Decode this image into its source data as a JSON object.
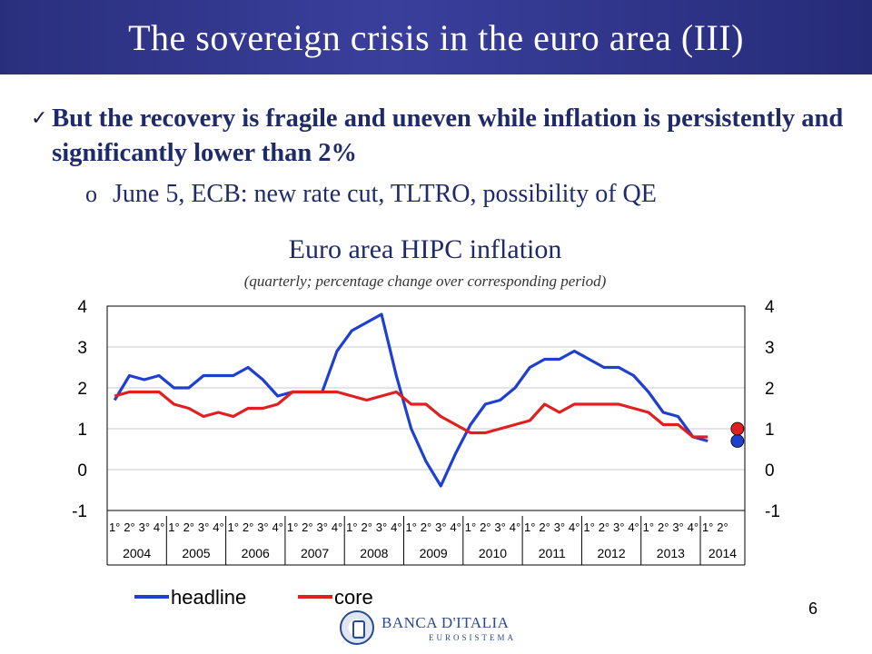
{
  "slide": {
    "title": "The sovereign crisis in the euro area (III)",
    "bullet_text": "But the recovery is fragile and uneven while inflation is persistently and significantly lower than 2%",
    "sub_marker": "o",
    "sub_text": "June 5, ECB: new rate cut, TLTRO, possibility of QE",
    "page_number": "6",
    "logo": {
      "name": "BANCA D'ITALIA",
      "sub": "EUROSISTEMA"
    }
  },
  "chart_data": {
    "type": "line",
    "title": "Euro area HIPC inflation",
    "subtitle": "(quarterly; percentage change over corresponding period)",
    "ylim": [
      -1,
      4
    ],
    "yticks": [
      4,
      3,
      2,
      1,
      0,
      -1
    ],
    "grid": "horizontal",
    "legend_position": "bottom",
    "years": [
      "2004",
      "2005",
      "2006",
      "2007",
      "2008",
      "2009",
      "2010",
      "2011",
      "2012",
      "2013",
      "2014"
    ],
    "quarters_per_year": [
      4,
      4,
      4,
      4,
      4,
      4,
      4,
      4,
      4,
      4,
      2
    ],
    "quarter_labels": [
      "1°",
      "2°",
      "3°",
      "4°"
    ],
    "series": [
      {
        "name": "headline",
        "color": "#1f3fcf",
        "values": [
          1.7,
          2.3,
          2.2,
          2.3,
          2.0,
          2.0,
          2.3,
          2.3,
          2.3,
          2.5,
          2.2,
          1.8,
          1.9,
          1.9,
          1.9,
          2.9,
          3.4,
          3.6,
          3.8,
          2.3,
          1.0,
          0.2,
          -0.4,
          0.4,
          1.1,
          1.6,
          1.7,
          2.0,
          2.5,
          2.7,
          2.7,
          2.9,
          2.7,
          2.5,
          2.5,
          2.3,
          1.9,
          1.4,
          1.3,
          0.8,
          0.7
        ],
        "marker_value": 0.7
      },
      {
        "name": "core",
        "color": "#e02020",
        "values": [
          1.8,
          1.9,
          1.9,
          1.9,
          1.6,
          1.5,
          1.3,
          1.4,
          1.3,
          1.5,
          1.5,
          1.6,
          1.9,
          1.9,
          1.9,
          1.9,
          1.8,
          1.7,
          1.8,
          1.9,
          1.6,
          1.6,
          1.3,
          1.1,
          0.9,
          0.9,
          1.0,
          1.1,
          1.2,
          1.6,
          1.4,
          1.6,
          1.6,
          1.6,
          1.6,
          1.5,
          1.4,
          1.1,
          1.1,
          0.8,
          0.8
        ],
        "marker_value": 1.0
      }
    ]
  }
}
